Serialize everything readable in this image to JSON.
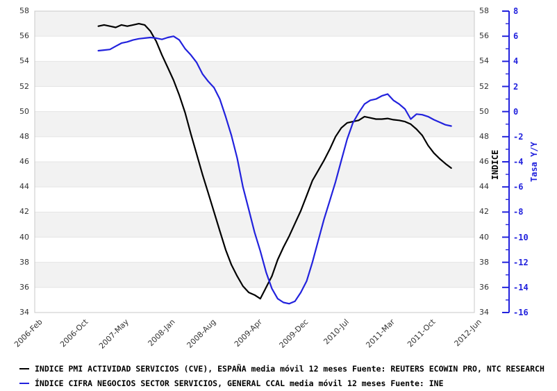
{
  "colors": {
    "pmi_line": "#000000",
    "ine_line": "#2222dd",
    "band_gray": "#f2f2f2",
    "gridline": "#e4e4e4",
    "plot_border": "#c8c8c8",
    "tick_text": "#333333",
    "blue_axis_text": "#2222dd"
  },
  "chart_data": {
    "type": "line",
    "x_start": "2006-Feb",
    "x_end": "2012-Jun",
    "x_total_months": 76,
    "x_tick_labels": [
      "2006-Feb",
      "2006-Oct",
      "2007-May",
      "2008-Jan",
      "2008-Aug",
      "2009-Apr",
      "2009-Dec",
      "2010-Jul",
      "2011-Mar",
      "2011-Oct",
      "2012-Jun"
    ],
    "x_tick_month_offsets": [
      0,
      8,
      15,
      23,
      30,
      38,
      46,
      53,
      61,
      68,
      76
    ],
    "left_axis": {
      "label": "INDICE",
      "min": 34,
      "max": 58,
      "tick_step": 2,
      "ticks": [
        58,
        56,
        54,
        52,
        50,
        48,
        46,
        44,
        42,
        40,
        38,
        36,
        34
      ]
    },
    "right_axis": {
      "label": "Tasa Y/Y",
      "min": -16,
      "max": 8,
      "tick_step": 2,
      "minor_tick_step": 1,
      "ticks": [
        8,
        6,
        4,
        2,
        0,
        -2,
        -4,
        -6,
        -8,
        -10,
        -12,
        -14,
        -16
      ]
    },
    "right_to_left_offset": 50,
    "series": [
      {
        "name": "INDICE PMI ACTIVIDAD SERVICIOS (CVE), ESPAÑA media móvil 12 meses",
        "axis": "left",
        "color": "#000000",
        "start_month": "2007-Jan",
        "start_offset_months": 11,
        "values": [
          56.8,
          56.9,
          56.8,
          56.7,
          56.9,
          56.8,
          56.9,
          57.0,
          56.9,
          56.4,
          55.6,
          54.5,
          53.5,
          52.5,
          51.3,
          49.9,
          48.2,
          46.6,
          45.0,
          43.5,
          42.0,
          40.5,
          39.0,
          37.8,
          36.9,
          36.1,
          35.6,
          35.4,
          35.1,
          36.0,
          36.9,
          38.2,
          39.2,
          40.1,
          41.1,
          42.1,
          43.3,
          44.5,
          45.3,
          46.1,
          47.0,
          48.0,
          48.7,
          49.1,
          49.2,
          49.3,
          49.6,
          49.5,
          49.4,
          49.4,
          49.45,
          49.35,
          49.3,
          49.2,
          49.0,
          48.6,
          48.1,
          47.3,
          46.7,
          46.25,
          45.85,
          45.5
        ]
      },
      {
        "name": "ÍNDICE CIFRA NEGOCIOS SECTOR SERVICIOS, GENERAL CCAL media móvil 12 meses",
        "axis": "right",
        "color": "#2222dd",
        "start_month": "2007-Jan",
        "start_offset_months": 11,
        "values": [
          4.85,
          4.9,
          4.95,
          5.2,
          5.45,
          5.55,
          5.7,
          5.8,
          5.85,
          5.9,
          5.85,
          5.75,
          5.9,
          6.0,
          5.7,
          5.0,
          4.5,
          3.9,
          3.0,
          2.4,
          1.9,
          1.0,
          -0.4,
          -1.9,
          -3.7,
          -6.0,
          -7.8,
          -9.6,
          -11.1,
          -12.8,
          -14.1,
          -14.9,
          -15.2,
          -15.3,
          -15.1,
          -14.4,
          -13.5,
          -12.0,
          -10.3,
          -8.6,
          -7.1,
          -5.6,
          -3.9,
          -2.2,
          -0.9,
          -0.1,
          0.6,
          0.9,
          1.0,
          1.25,
          1.4,
          0.9,
          0.6,
          0.2,
          -0.6,
          -0.2,
          -0.25,
          -0.4,
          -0.65,
          -0.85,
          -1.05,
          -1.15
        ]
      }
    ]
  },
  "legend": {
    "items": [
      {
        "label": "INDICE PMI ACTIVIDAD SERVICIOS  (CVE), ESPAÑA media móvil 12 meses  Fuente: REUTERS ECOWIN PRO, NTC RESEARCH",
        "color": "#000000"
      },
      {
        "label": "ÍNDICE CIFRA NEGOCIOS SECTOR SERVICIOS, GENERAL CCAL media móvil 12 meses  Fuente: INE",
        "color": "#2222dd"
      }
    ]
  }
}
